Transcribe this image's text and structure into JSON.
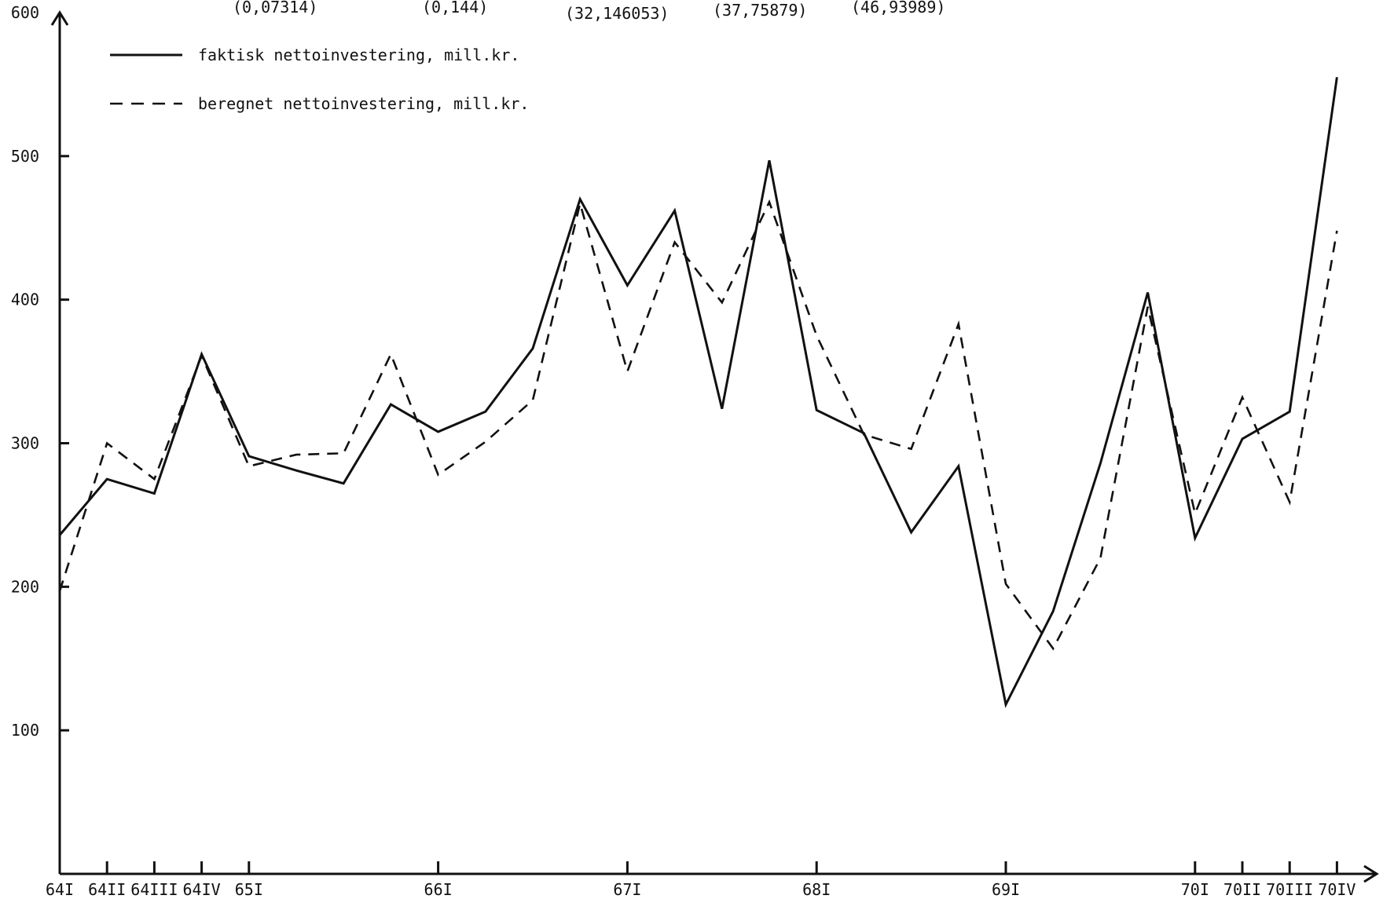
{
  "header_fragments": [
    "(0,07314)",
    "(0,144)",
    "(32,146053)",
    "(37,75879)",
    "(46,93989)"
  ],
  "chart_data": {
    "type": "line",
    "title": "",
    "xlabel": "",
    "ylabel": "",
    "ylim": [
      0,
      600
    ],
    "y_ticks": [
      100,
      200,
      300,
      400,
      500,
      600
    ],
    "x_tick_labels": [
      "64I",
      "64II",
      "64III",
      "64IV",
      "65I",
      "66I",
      "67I",
      "68I",
      "69I",
      "70I",
      "70II",
      "70III",
      "70IV"
    ],
    "x_tick_quarter_index": [
      0,
      1,
      2,
      3,
      4,
      8,
      12,
      16,
      20,
      24,
      25,
      26,
      27
    ],
    "quarters": [
      "64I",
      "64II",
      "64III",
      "64IV",
      "65I",
      "65II",
      "65III",
      "65IV",
      "66I",
      "66II",
      "66III",
      "66IV",
      "67I",
      "67II",
      "67III",
      "67IV",
      "68I",
      "68II",
      "68III",
      "68IV",
      "69I",
      "69II",
      "69III",
      "69IV",
      "70I",
      "70II",
      "70III",
      "70IV"
    ],
    "legend_position": "top-left",
    "series": [
      {
        "name": "faktisk nettoinvestering, mill.kr.",
        "style": "solid",
        "values": [
          236,
          275,
          265,
          362,
          291,
          281,
          272,
          327,
          308,
          322,
          366,
          470,
          410,
          462,
          324,
          497,
          323,
          307,
          238,
          284,
          118,
          183,
          286,
          405,
          234,
          303,
          322,
          555
        ]
      },
      {
        "name": "beregnet nettoinvestering, mill.kr.",
        "style": "dashed",
        "values": [
          197,
          300,
          275,
          361,
          284,
          292,
          293,
          362,
          278,
          301,
          330,
          467,
          350,
          440,
          398,
          468,
          375,
          306,
          296,
          383,
          202,
          157,
          220,
          395,
          251,
          332,
          259,
          448
        ]
      }
    ]
  }
}
